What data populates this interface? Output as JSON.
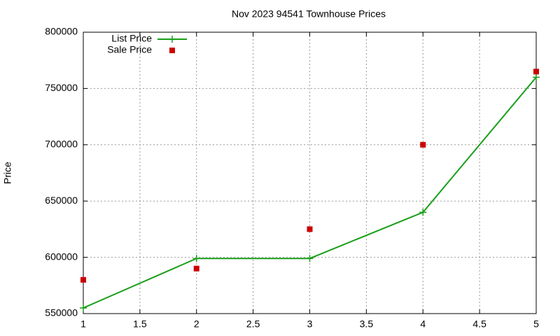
{
  "chart_data": {
    "type": "line",
    "title": "Nov 2023 94541 Townhouse Prices",
    "y_label": "Price",
    "x": [
      1,
      2,
      3,
      4,
      5
    ],
    "series": [
      {
        "name": "List Price",
        "color": "#1a9e1a",
        "style": "line-points",
        "values": [
          555000,
          599000,
          599000,
          640000,
          760000
        ]
      },
      {
        "name": "Sale Price",
        "color": "#cc0000",
        "style": "points",
        "values": [
          580000,
          590000,
          625000,
          700000,
          765000
        ]
      }
    ],
    "xlim": [
      1,
      5
    ],
    "xticks": [
      1,
      1.5,
      2,
      2.5,
      3,
      3.5,
      4,
      4.5,
      5
    ],
    "ylim": [
      550000,
      800000
    ],
    "yticks": [
      550000,
      600000,
      650000,
      700000,
      750000,
      800000
    ],
    "grid": true,
    "legend": "top-left"
  }
}
